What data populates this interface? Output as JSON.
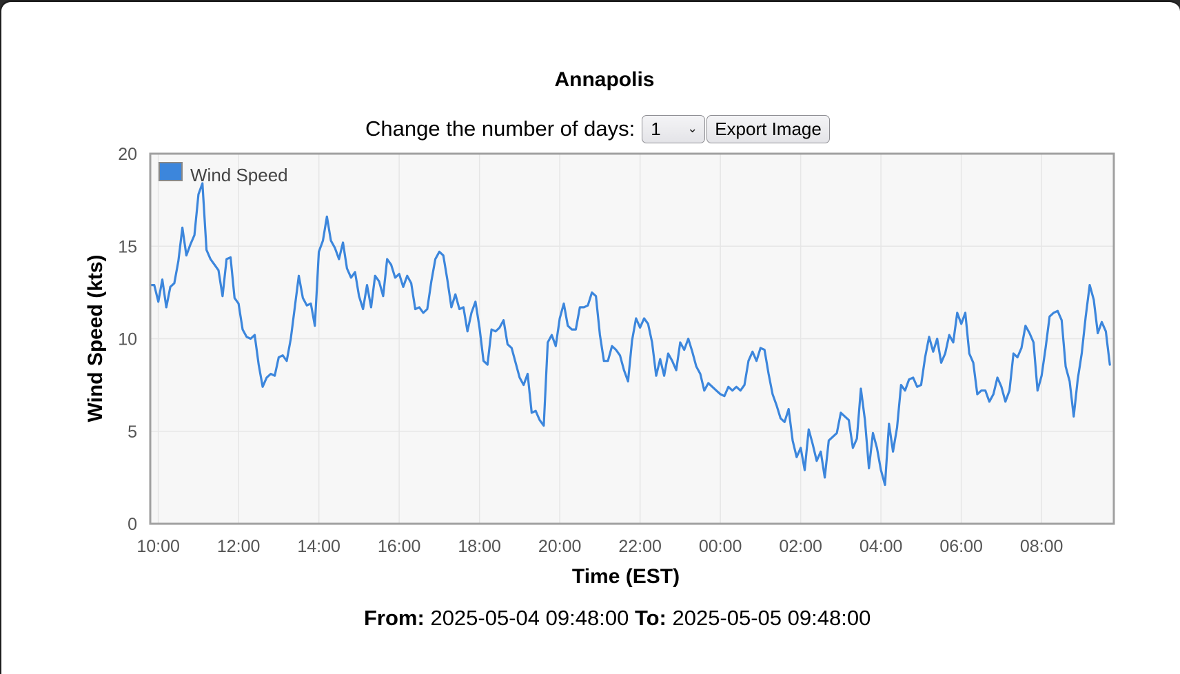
{
  "title": "Annapolis",
  "controls": {
    "days_label": "Change the number of days:",
    "days_value": "1",
    "export_label": "Export Image"
  },
  "range": {
    "from_label": "From:",
    "from_value": "2025-05-04 09:48:00",
    "to_label": "To:",
    "to_value": "2025-05-05 09:48:00"
  },
  "colors": {
    "series": "#3c86dc",
    "plot_background": "#f7f7f7",
    "grid": "#e6e6e6",
    "axis_border": "#a0a0a0"
  },
  "chart_data": {
    "type": "line",
    "title": "Annapolis",
    "xlabel": "Time (EST)",
    "ylabel": "Wind Speed (kts)",
    "ylim": [
      0,
      20
    ],
    "yticks": [
      0,
      5,
      10,
      15,
      20
    ],
    "xlim": [
      "2025-05-04 09:48",
      "2025-05-05 09:48"
    ],
    "xticks": [
      "10:00",
      "12:00",
      "14:00",
      "16:00",
      "18:00",
      "20:00",
      "22:00",
      "00:00",
      "02:00",
      "04:00",
      "06:00",
      "08:00"
    ],
    "grid": true,
    "legend": "top-left",
    "series": [
      {
        "name": "Wind Speed",
        "color": "#3c86dc",
        "points": [
          [
            "2025-05-04 09:48",
            12.9
          ],
          [
            "2025-05-04 09:54",
            12.9
          ],
          [
            "2025-05-04 10:00",
            12.0
          ],
          [
            "2025-05-04 10:06",
            13.2
          ],
          [
            "2025-05-04 10:12",
            11.7
          ],
          [
            "2025-05-04 10:18",
            12.8
          ],
          [
            "2025-05-04 10:24",
            13.0
          ],
          [
            "2025-05-04 10:30",
            14.2
          ],
          [
            "2025-05-04 10:36",
            16.0
          ],
          [
            "2025-05-04 10:42",
            14.5
          ],
          [
            "2025-05-04 10:48",
            15.1
          ],
          [
            "2025-05-04 10:54",
            15.6
          ],
          [
            "2025-05-04 11:00",
            17.8
          ],
          [
            "2025-05-04 11:06",
            18.4
          ],
          [
            "2025-05-04 11:12",
            14.8
          ],
          [
            "2025-05-04 11:18",
            14.3
          ],
          [
            "2025-05-04 11:24",
            14.0
          ],
          [
            "2025-05-04 11:30",
            13.7
          ],
          [
            "2025-05-04 11:36",
            12.3
          ],
          [
            "2025-05-04 11:42",
            14.3
          ],
          [
            "2025-05-04 11:48",
            14.4
          ],
          [
            "2025-05-04 11:54",
            12.2
          ],
          [
            "2025-05-04 12:00",
            11.9
          ],
          [
            "2025-05-04 12:06",
            10.5
          ],
          [
            "2025-05-04 12:12",
            10.1
          ],
          [
            "2025-05-04 12:18",
            10.0
          ],
          [
            "2025-05-04 12:24",
            10.2
          ],
          [
            "2025-05-04 12:30",
            8.6
          ],
          [
            "2025-05-04 12:36",
            7.4
          ],
          [
            "2025-05-04 12:42",
            7.9
          ],
          [
            "2025-05-04 12:48",
            8.1
          ],
          [
            "2025-05-04 12:54",
            8.0
          ],
          [
            "2025-05-04 13:00",
            9.0
          ],
          [
            "2025-05-04 13:06",
            9.1
          ],
          [
            "2025-05-04 13:12",
            8.8
          ],
          [
            "2025-05-04 13:18",
            10.0
          ],
          [
            "2025-05-04 13:24",
            11.7
          ],
          [
            "2025-05-04 13:30",
            13.4
          ],
          [
            "2025-05-04 13:36",
            12.2
          ],
          [
            "2025-05-04 13:42",
            11.8
          ],
          [
            "2025-05-04 13:48",
            11.9
          ],
          [
            "2025-05-04 13:54",
            10.7
          ],
          [
            "2025-05-04 14:00",
            14.7
          ],
          [
            "2025-05-04 14:06",
            15.3
          ],
          [
            "2025-05-04 14:12",
            16.6
          ],
          [
            "2025-05-04 14:18",
            15.3
          ],
          [
            "2025-05-04 14:24",
            14.9
          ],
          [
            "2025-05-04 14:30",
            14.3
          ],
          [
            "2025-05-04 14:36",
            15.2
          ],
          [
            "2025-05-04 14:42",
            13.8
          ],
          [
            "2025-05-04 14:48",
            13.3
          ],
          [
            "2025-05-04 14:54",
            13.6
          ],
          [
            "2025-05-04 15:00",
            12.3
          ],
          [
            "2025-05-04 15:06",
            11.6
          ],
          [
            "2025-05-04 15:12",
            12.9
          ],
          [
            "2025-05-04 15:18",
            11.7
          ],
          [
            "2025-05-04 15:24",
            13.4
          ],
          [
            "2025-05-04 15:30",
            13.1
          ],
          [
            "2025-05-04 15:36",
            12.3
          ],
          [
            "2025-05-04 15:42",
            14.3
          ],
          [
            "2025-05-04 15:48",
            14.0
          ],
          [
            "2025-05-04 15:54",
            13.3
          ],
          [
            "2025-05-04 16:00",
            13.5
          ],
          [
            "2025-05-04 16:06",
            12.8
          ],
          [
            "2025-05-04 16:12",
            13.4
          ],
          [
            "2025-05-04 16:18",
            13.0
          ],
          [
            "2025-05-04 16:24",
            11.6
          ],
          [
            "2025-05-04 16:30",
            11.7
          ],
          [
            "2025-05-04 16:36",
            11.4
          ],
          [
            "2025-05-04 16:42",
            11.6
          ],
          [
            "2025-05-04 16:48",
            13.1
          ],
          [
            "2025-05-04 16:54",
            14.3
          ],
          [
            "2025-05-04 17:00",
            14.7
          ],
          [
            "2025-05-04 17:06",
            14.5
          ],
          [
            "2025-05-04 17:12",
            13.2
          ],
          [
            "2025-05-04 17:18",
            11.7
          ],
          [
            "2025-05-04 17:24",
            12.4
          ],
          [
            "2025-05-04 17:30",
            11.6
          ],
          [
            "2025-05-04 17:36",
            11.7
          ],
          [
            "2025-05-04 17:42",
            10.4
          ],
          [
            "2025-05-04 17:48",
            11.4
          ],
          [
            "2025-05-04 17:54",
            12.0
          ],
          [
            "2025-05-04 18:00",
            10.6
          ],
          [
            "2025-05-04 18:06",
            8.8
          ],
          [
            "2025-05-04 18:12",
            8.6
          ],
          [
            "2025-05-04 18:18",
            10.5
          ],
          [
            "2025-05-04 18:24",
            10.4
          ],
          [
            "2025-05-04 18:30",
            10.6
          ],
          [
            "2025-05-04 18:36",
            11.0
          ],
          [
            "2025-05-04 18:42",
            9.7
          ],
          [
            "2025-05-04 18:48",
            9.5
          ],
          [
            "2025-05-04 18:54",
            8.7
          ],
          [
            "2025-05-04 19:00",
            7.9
          ],
          [
            "2025-05-04 19:06",
            7.5
          ],
          [
            "2025-05-04 19:12",
            8.1
          ],
          [
            "2025-05-04 19:18",
            6.0
          ],
          [
            "2025-05-04 19:24",
            6.1
          ],
          [
            "2025-05-04 19:30",
            5.6
          ],
          [
            "2025-05-04 19:36",
            5.3
          ],
          [
            "2025-05-04 19:42",
            9.8
          ],
          [
            "2025-05-04 19:48",
            10.2
          ],
          [
            "2025-05-04 19:54",
            9.6
          ],
          [
            "2025-05-04 20:00",
            11.1
          ],
          [
            "2025-05-04 20:06",
            11.9
          ],
          [
            "2025-05-04 20:12",
            10.7
          ],
          [
            "2025-05-04 20:18",
            10.5
          ],
          [
            "2025-05-04 20:24",
            10.5
          ],
          [
            "2025-05-04 20:30",
            11.7
          ],
          [
            "2025-05-04 20:36",
            11.7
          ],
          [
            "2025-05-04 20:42",
            11.8
          ],
          [
            "2025-05-04 20:48",
            12.5
          ],
          [
            "2025-05-04 20:54",
            12.3
          ],
          [
            "2025-05-04 21:00",
            10.2
          ],
          [
            "2025-05-04 21:06",
            8.8
          ],
          [
            "2025-05-04 21:12",
            8.8
          ],
          [
            "2025-05-04 21:18",
            9.6
          ],
          [
            "2025-05-04 21:24",
            9.4
          ],
          [
            "2025-05-04 21:30",
            9.1
          ],
          [
            "2025-05-04 21:36",
            8.3
          ],
          [
            "2025-05-04 21:42",
            7.7
          ],
          [
            "2025-05-04 21:48",
            9.9
          ],
          [
            "2025-05-04 21:54",
            11.1
          ],
          [
            "2025-05-04 22:00",
            10.6
          ],
          [
            "2025-05-04 22:06",
            11.1
          ],
          [
            "2025-05-04 22:12",
            10.8
          ],
          [
            "2025-05-04 22:18",
            9.8
          ],
          [
            "2025-05-04 22:24",
            8.0
          ],
          [
            "2025-05-04 22:30",
            8.9
          ],
          [
            "2025-05-04 22:36",
            8.0
          ],
          [
            "2025-05-04 22:42",
            9.2
          ],
          [
            "2025-05-04 22:48",
            8.8
          ],
          [
            "2025-05-04 22:54",
            8.3
          ],
          [
            "2025-05-04 23:00",
            9.8
          ],
          [
            "2025-05-04 23:06",
            9.4
          ],
          [
            "2025-05-04 23:12",
            10.0
          ],
          [
            "2025-05-04 23:18",
            9.3
          ],
          [
            "2025-05-04 23:24",
            8.5
          ],
          [
            "2025-05-04 23:30",
            8.1
          ],
          [
            "2025-05-04 23:36",
            7.2
          ],
          [
            "2025-05-04 23:42",
            7.6
          ],
          [
            "2025-05-04 23:48",
            7.4
          ],
          [
            "2025-05-04 23:54",
            7.2
          ],
          [
            "2025-05-05 00:00",
            7.0
          ],
          [
            "2025-05-05 00:06",
            6.9
          ],
          [
            "2025-05-05 00:12",
            7.4
          ],
          [
            "2025-05-05 00:18",
            7.2
          ],
          [
            "2025-05-05 00:24",
            7.4
          ],
          [
            "2025-05-05 00:30",
            7.2
          ],
          [
            "2025-05-05 00:36",
            7.5
          ],
          [
            "2025-05-05 00:42",
            8.8
          ],
          [
            "2025-05-05 00:48",
            9.3
          ],
          [
            "2025-05-05 00:54",
            8.8
          ],
          [
            "2025-05-05 01:00",
            9.5
          ],
          [
            "2025-05-05 01:06",
            9.4
          ],
          [
            "2025-05-05 01:12",
            8.1
          ],
          [
            "2025-05-05 01:18",
            7.0
          ],
          [
            "2025-05-05 01:24",
            6.4
          ],
          [
            "2025-05-05 01:30",
            5.7
          ],
          [
            "2025-05-05 01:36",
            5.5
          ],
          [
            "2025-05-05 01:42",
            6.2
          ],
          [
            "2025-05-05 01:48",
            4.5
          ],
          [
            "2025-05-05 01:54",
            3.6
          ],
          [
            "2025-05-05 02:00",
            4.1
          ],
          [
            "2025-05-05 02:06",
            2.9
          ],
          [
            "2025-05-05 02:12",
            5.1
          ],
          [
            "2025-05-05 02:18",
            4.3
          ],
          [
            "2025-05-05 02:24",
            3.4
          ],
          [
            "2025-05-05 02:30",
            3.9
          ],
          [
            "2025-05-05 02:36",
            2.5
          ],
          [
            "2025-05-05 02:42",
            4.5
          ],
          [
            "2025-05-05 02:48",
            4.7
          ],
          [
            "2025-05-05 02:54",
            4.9
          ],
          [
            "2025-05-05 03:00",
            6.0
          ],
          [
            "2025-05-05 03:06",
            5.8
          ],
          [
            "2025-05-05 03:12",
            5.6
          ],
          [
            "2025-05-05 03:18",
            4.1
          ],
          [
            "2025-05-05 03:24",
            4.6
          ],
          [
            "2025-05-05 03:30",
            7.3
          ],
          [
            "2025-05-05 03:36",
            5.6
          ],
          [
            "2025-05-05 03:42",
            3.0
          ],
          [
            "2025-05-05 03:48",
            4.9
          ],
          [
            "2025-05-05 03:54",
            4.1
          ],
          [
            "2025-05-05 04:00",
            2.9
          ],
          [
            "2025-05-05 04:06",
            2.1
          ],
          [
            "2025-05-05 04:12",
            5.4
          ],
          [
            "2025-05-05 04:18",
            3.9
          ],
          [
            "2025-05-05 04:24",
            5.2
          ],
          [
            "2025-05-05 04:30",
            7.5
          ],
          [
            "2025-05-05 04:36",
            7.2
          ],
          [
            "2025-05-05 04:42",
            7.8
          ],
          [
            "2025-05-05 04:48",
            7.9
          ],
          [
            "2025-05-05 04:54",
            7.4
          ],
          [
            "2025-05-05 05:00",
            7.5
          ],
          [
            "2025-05-05 05:06",
            9.0
          ],
          [
            "2025-05-05 05:12",
            10.1
          ],
          [
            "2025-05-05 05:18",
            9.3
          ],
          [
            "2025-05-05 05:24",
            10.0
          ],
          [
            "2025-05-05 05:30",
            8.7
          ],
          [
            "2025-05-05 05:36",
            9.2
          ],
          [
            "2025-05-05 05:42",
            10.2
          ],
          [
            "2025-05-05 05:48",
            9.8
          ],
          [
            "2025-05-05 05:54",
            11.4
          ],
          [
            "2025-05-05 06:00",
            10.8
          ],
          [
            "2025-05-05 06:06",
            11.4
          ],
          [
            "2025-05-05 06:12",
            9.2
          ],
          [
            "2025-05-05 06:18",
            8.7
          ],
          [
            "2025-05-05 06:24",
            7.0
          ],
          [
            "2025-05-05 06:30",
            7.2
          ],
          [
            "2025-05-05 06:36",
            7.2
          ],
          [
            "2025-05-05 06:42",
            6.6
          ],
          [
            "2025-05-05 06:48",
            7.0
          ],
          [
            "2025-05-05 06:54",
            7.9
          ],
          [
            "2025-05-05 07:00",
            7.4
          ],
          [
            "2025-05-05 07:06",
            6.6
          ],
          [
            "2025-05-05 07:12",
            7.2
          ],
          [
            "2025-05-05 07:18",
            9.2
          ],
          [
            "2025-05-05 07:24",
            9.0
          ],
          [
            "2025-05-05 07:30",
            9.5
          ],
          [
            "2025-05-05 07:36",
            10.7
          ],
          [
            "2025-05-05 07:42",
            10.3
          ],
          [
            "2025-05-05 07:48",
            9.8
          ],
          [
            "2025-05-05 07:54",
            7.2
          ],
          [
            "2025-05-05 08:00",
            8.0
          ],
          [
            "2025-05-05 08:06",
            9.5
          ],
          [
            "2025-05-05 08:12",
            11.2
          ],
          [
            "2025-05-05 08:18",
            11.4
          ],
          [
            "2025-05-05 08:24",
            11.5
          ],
          [
            "2025-05-05 08:30",
            11.0
          ],
          [
            "2025-05-05 08:36",
            8.5
          ],
          [
            "2025-05-05 08:42",
            7.7
          ],
          [
            "2025-05-05 08:48",
            5.8
          ],
          [
            "2025-05-05 08:54",
            7.8
          ],
          [
            "2025-05-05 09:00",
            9.2
          ],
          [
            "2025-05-05 09:06",
            11.2
          ],
          [
            "2025-05-05 09:12",
            12.9
          ],
          [
            "2025-05-05 09:18",
            12.1
          ],
          [
            "2025-05-05 09:24",
            10.3
          ],
          [
            "2025-05-05 09:30",
            10.9
          ],
          [
            "2025-05-05 09:36",
            10.4
          ],
          [
            "2025-05-05 09:42",
            8.6
          ]
        ]
      }
    ]
  }
}
